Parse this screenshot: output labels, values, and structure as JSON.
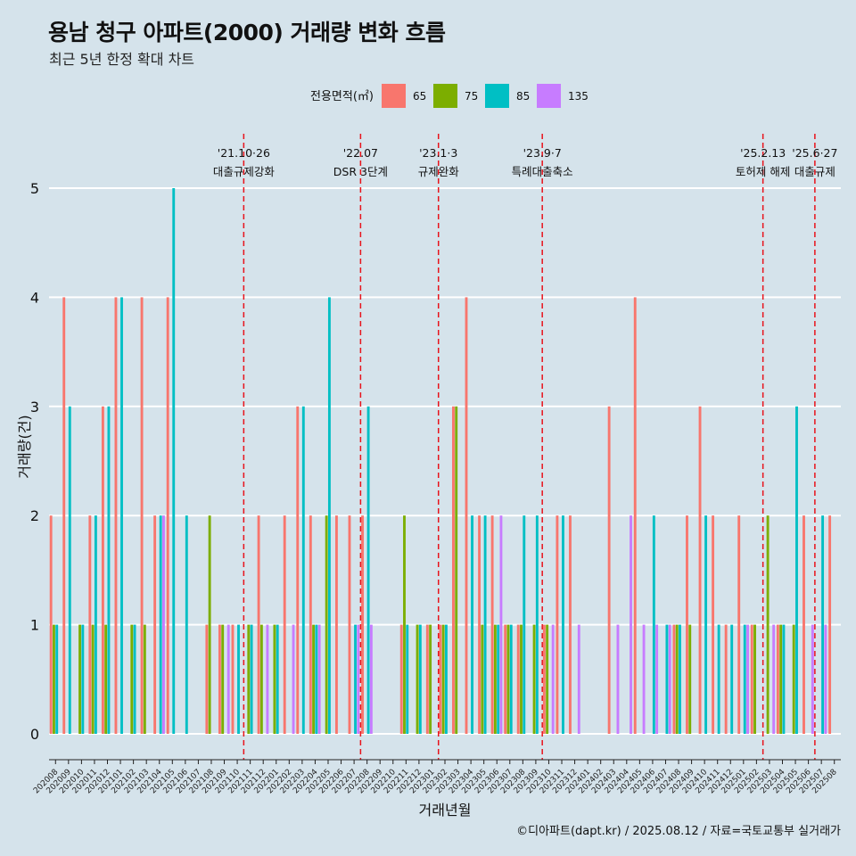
{
  "title": "용남 청구 아파트(2000) 거래량 변화 흐름",
  "subtitle": "최근 5년 한정 확대 차트",
  "caption": "©디아파트(dapt.kr) / 2025.08.12 / 자료=국토교통부 실거래가",
  "colors": {
    "65": "#f8766d",
    "75": "#7cae00",
    "85": "#00bfc4",
    "135": "#c77cff",
    "vline": "#e8131b",
    "grid": "#ffffff",
    "background": "#d5e3eb"
  },
  "chart_data": {
    "type": "bar",
    "xlabel": "거래년월",
    "ylabel": "거래량(건)",
    "ylim": [
      0,
      5
    ],
    "yticks": [
      0,
      1,
      2,
      3,
      4,
      5
    ],
    "legend": {
      "title": "전용면적(㎡)",
      "position": "top",
      "entries": [
        "65",
        "75",
        "85",
        "135"
      ]
    },
    "categories": [
      "202008",
      "202009",
      "202010",
      "202011",
      "202012",
      "202101",
      "202102",
      "202103",
      "202104",
      "202105",
      "202106",
      "202107",
      "202108",
      "202109",
      "202110",
      "202111",
      "202112",
      "202201",
      "202202",
      "202203",
      "202204",
      "202205",
      "202206",
      "202207",
      "202208",
      "202209",
      "202210",
      "202211",
      "202212",
      "202301",
      "202302",
      "202303",
      "202304",
      "202305",
      "202306",
      "202307",
      "202308",
      "202309",
      "202310",
      "202311",
      "202312",
      "202401",
      "202402",
      "202403",
      "202404",
      "202405",
      "202406",
      "202407",
      "202408",
      "202409",
      "202410",
      "202411",
      "202412",
      "202501",
      "202502",
      "202503",
      "202504",
      "202505",
      "202506",
      "202507",
      "202508"
    ],
    "series": [
      {
        "name": "65",
        "values": [
          2,
          4,
          0,
          2,
          3,
          4,
          0,
          4,
          2,
          4,
          0,
          0,
          1,
          1,
          1,
          0,
          2,
          0,
          2,
          3,
          2,
          0,
          2,
          2,
          2,
          0,
          0,
          1,
          0,
          1,
          1,
          3,
          4,
          2,
          2,
          1,
          1,
          0,
          1,
          2,
          2,
          0,
          0,
          3,
          0,
          4,
          0,
          0,
          1,
          2,
          3,
          2,
          1,
          2,
          1,
          0,
          1,
          0,
          2,
          0,
          2
        ]
      },
      {
        "name": "75",
        "values": [
          1,
          0,
          1,
          1,
          1,
          0,
          1,
          1,
          0,
          0,
          0,
          0,
          2,
          1,
          0,
          1,
          1,
          1,
          0,
          0,
          1,
          2,
          0,
          0,
          0,
          0,
          0,
          2,
          1,
          1,
          1,
          3,
          0,
          1,
          1,
          1,
          1,
          1,
          1,
          0,
          0,
          0,
          0,
          0,
          0,
          0,
          0,
          0,
          1,
          1,
          0,
          0,
          0,
          0,
          1,
          2,
          1,
          1,
          0,
          0,
          0
        ]
      },
      {
        "name": "85",
        "values": [
          1,
          3,
          1,
          2,
          3,
          4,
          1,
          0,
          2,
          5,
          2,
          0,
          0,
          0,
          1,
          1,
          0,
          1,
          0,
          3,
          1,
          4,
          0,
          1,
          3,
          0,
          0,
          1,
          1,
          0,
          1,
          0,
          2,
          2,
          1,
          1,
          2,
          2,
          0,
          2,
          0,
          0,
          0,
          0,
          0,
          0,
          2,
          1,
          1,
          0,
          2,
          1,
          1,
          1,
          0,
          0,
          1,
          3,
          0,
          2,
          0
        ]
      },
      {
        "name": "135",
        "values": [
          0,
          0,
          0,
          0,
          0,
          0,
          0,
          0,
          2,
          0,
          0,
          0,
          0,
          1,
          0,
          0,
          1,
          0,
          1,
          0,
          1,
          0,
          0,
          1,
          1,
          0,
          0,
          0,
          0,
          0,
          0,
          0,
          0,
          0,
          2,
          0,
          0,
          0,
          1,
          0,
          1,
          0,
          0,
          1,
          2,
          1,
          1,
          1,
          0,
          0,
          0,
          0,
          0,
          1,
          0,
          1,
          0,
          0,
          1,
          1,
          0
        ]
      }
    ],
    "annotations": [
      {
        "after": "202110",
        "date": "'21.10·26",
        "label": "대출규제강화"
      },
      {
        "after": "202207",
        "date": "'22.07",
        "label": "DSR 3단계"
      },
      {
        "after": "202301",
        "date": "'23.1·3",
        "label": "규제완화"
      },
      {
        "after": "202309",
        "date": "'23.9·7",
        "label": "특례대출축소"
      },
      {
        "after": "202502",
        "date": "'25.2.13",
        "label": "토허제 해제"
      },
      {
        "after": "202506",
        "date": "'25.6·27",
        "label": "대출규제"
      }
    ]
  }
}
